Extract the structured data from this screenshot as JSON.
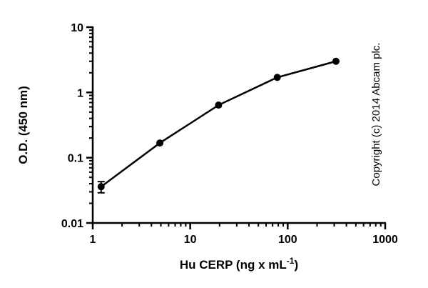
{
  "chart_data": {
    "type": "line",
    "xlabel": {
      "text": "Hu CERP (ng x mL",
      "superscript": "-1",
      "end": ")"
    },
    "ylabel": "O.D. (450 nm)",
    "annotation": "Copyright (c) 2014 Abcam plc.",
    "x": [
      1.22,
      4.88,
      19.53,
      78.13,
      312.5
    ],
    "series": [
      {
        "color": "#000000",
        "values": [
          0.036,
          0.168,
          0.64,
          1.7,
          3.0
        ],
        "errors": [
          0.007,
          null,
          null,
          null,
          null
        ]
      }
    ],
    "xscale": "log",
    "yscale": "log",
    "xlim": [
      1,
      1000
    ],
    "ylim": [
      0.01,
      10
    ],
    "xticks": [
      1,
      10,
      100,
      1000
    ],
    "yticks": [
      0.01,
      0.1,
      1,
      10
    ]
  }
}
